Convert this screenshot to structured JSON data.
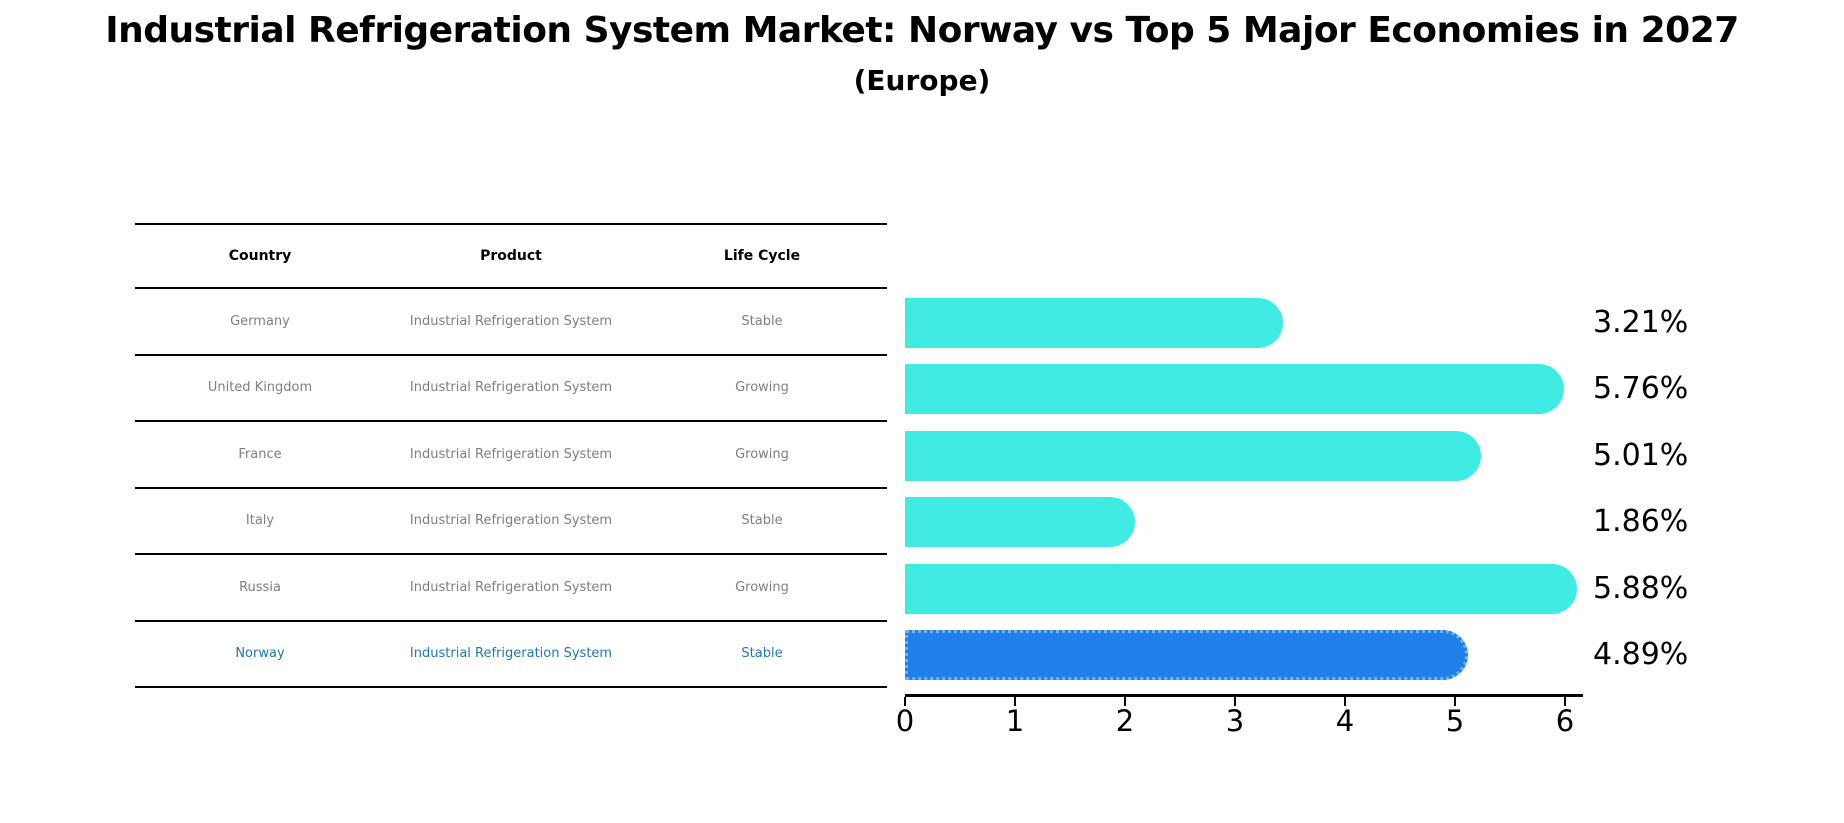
{
  "title": "Industrial Refrigeration System Market: Norway vs Top 5 Major Economies in 2027",
  "subtitle": "(Europe)",
  "table": {
    "headers": [
      "Country",
      "Product",
      "Life Cycle"
    ],
    "rows": [
      {
        "country": "Germany",
        "product": "Industrial Refrigeration System",
        "life_cycle": "Stable",
        "highlight": false
      },
      {
        "country": "United Kingdom",
        "product": "Industrial Refrigeration System",
        "life_cycle": "Growing",
        "highlight": false
      },
      {
        "country": "France",
        "product": "Industrial Refrigeration System",
        "life_cycle": "Growing",
        "highlight": false
      },
      {
        "country": "Italy",
        "product": "Industrial Refrigeration System",
        "life_cycle": "Stable",
        "highlight": false
      },
      {
        "country": "Russia",
        "product": "Industrial Refrigeration System",
        "life_cycle": "Growing",
        "highlight": false
      },
      {
        "country": "Norway",
        "product": "Industrial Refrigeration System",
        "life_cycle": "Stable",
        "highlight": true
      }
    ]
  },
  "chart_data": {
    "type": "bar",
    "orientation": "horizontal",
    "title": "Industrial Refrigeration System Market: Norway vs Top 5 Major Economies in 2027",
    "subtitle": "(Europe)",
    "categories": [
      "Germany",
      "United Kingdom",
      "France",
      "Italy",
      "Russia",
      "Norway"
    ],
    "values": [
      3.21,
      5.76,
      5.01,
      1.86,
      5.88,
      4.89
    ],
    "value_labels": [
      "3.21%",
      "5.76%",
      "5.01%",
      "1.86%",
      "5.88%",
      "4.89%"
    ],
    "x_ticks": [
      0,
      1,
      2,
      3,
      4,
      5,
      6
    ],
    "xlim": [
      0,
      6.16
    ],
    "grid": false,
    "legend": false,
    "highlight_index": 5,
    "bar_color": "#40EBE4",
    "highlight_color": "#1E80E8",
    "highlight_border_color": "#6fb4f2",
    "highlight_text_color": "#1f77b4",
    "table_text_color": "#7f7f7f"
  }
}
